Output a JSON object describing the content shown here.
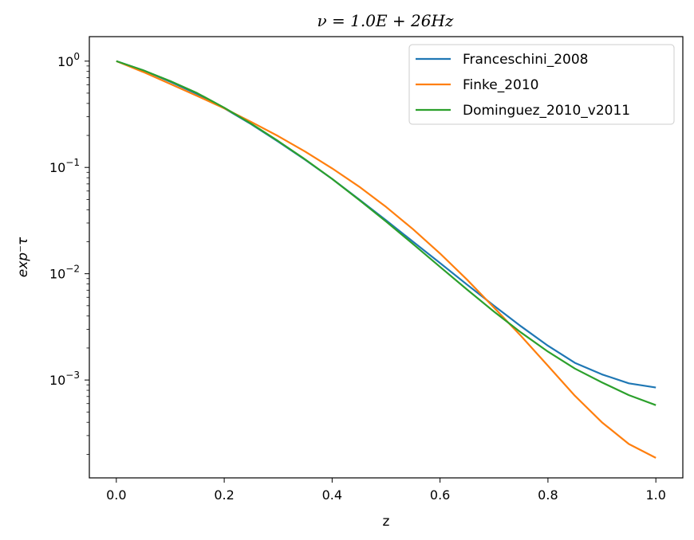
{
  "chart_data": {
    "type": "line",
    "title": "ν = 1.0E + 26Hz",
    "xlabel": "z",
    "ylabel": "exp⁻τ",
    "xlim": [
      -0.05,
      1.05
    ],
    "ylim": [
      0.00012,
      1.7
    ],
    "yscale": "log",
    "xticks": [
      "0.0",
      "0.2",
      "0.4",
      "0.6",
      "0.8",
      "1.0"
    ],
    "yticks": [
      {
        "value": 1,
        "base": "10",
        "exp": "0"
      },
      {
        "value": 0.1,
        "base": "10",
        "exp": "−1"
      },
      {
        "value": 0.01,
        "base": "10",
        "exp": "−2"
      },
      {
        "value": 0.001,
        "base": "10",
        "exp": "−3"
      }
    ],
    "grid": false,
    "legend_position": "top-right",
    "x": [
      0.0,
      0.05,
      0.1,
      0.15,
      0.2,
      0.25,
      0.3,
      0.35,
      0.4,
      0.45,
      0.5,
      0.55,
      0.6,
      0.65,
      0.7,
      0.75,
      0.8,
      0.85,
      0.9,
      0.95,
      1.0
    ],
    "series": [
      {
        "name": "Franceschini_2008",
        "color": "#1f77b4",
        "values": [
          1.0,
          0.82,
          0.64,
          0.49,
          0.36,
          0.255,
          0.175,
          0.118,
          0.078,
          0.05,
          0.0318,
          0.02,
          0.0126,
          0.0079,
          0.005,
          0.0032,
          0.0021,
          0.00145,
          0.00113,
          0.00093,
          0.00085
        ]
      },
      {
        "name": "Finke_2010",
        "color": "#ff7f0e",
        "values": [
          1.0,
          0.79,
          0.61,
          0.47,
          0.36,
          0.268,
          0.197,
          0.141,
          0.098,
          0.066,
          0.0425,
          0.0262,
          0.0155,
          0.0088,
          0.0048,
          0.0026,
          0.00136,
          0.00071,
          0.0004,
          0.00025,
          0.000185
        ]
      },
      {
        "name": "Dominguez_2010_v2011",
        "color": "#2ca02c",
        "values": [
          1.0,
          0.82,
          0.65,
          0.5,
          0.365,
          0.258,
          0.177,
          0.119,
          0.078,
          0.0495,
          0.031,
          0.019,
          0.0116,
          0.0071,
          0.0044,
          0.0028,
          0.00185,
          0.00128,
          0.00095,
          0.00072,
          0.00058
        ]
      }
    ]
  }
}
